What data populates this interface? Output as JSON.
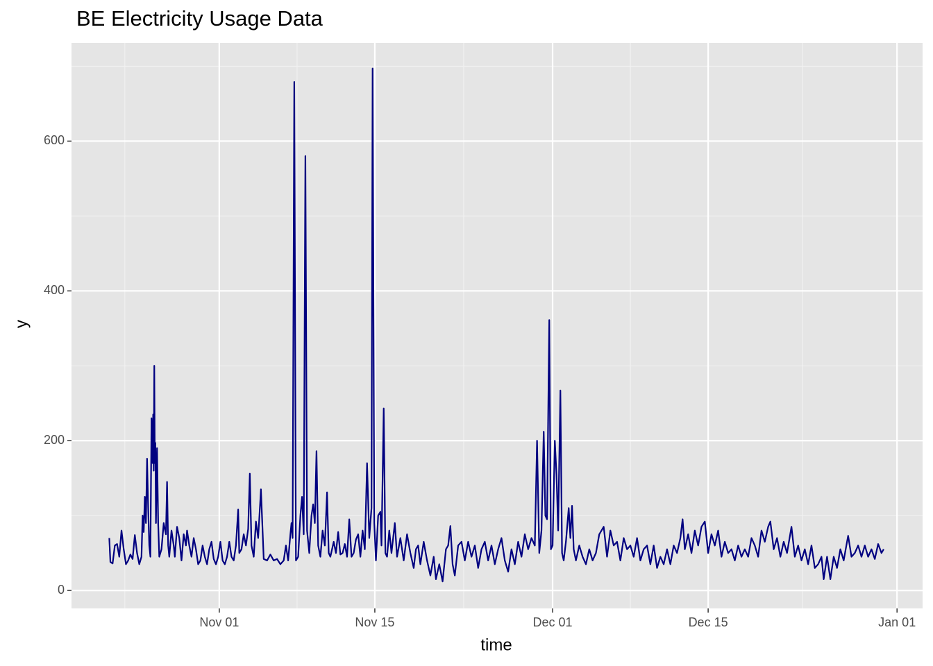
{
  "chart_data": {
    "type": "line",
    "title": "BE Electricity Usage Data",
    "x_label": "time",
    "y_label": "y",
    "color": "#000080",
    "grid": true,
    "background": "#e5e5e5",
    "xlim": [
      -13.3,
      63.3
    ],
    "ylim": [
      -24,
      731
    ],
    "xticks": [
      {
        "value": 0,
        "label": "Nov 01"
      },
      {
        "value": 14,
        "label": "Nov 15"
      },
      {
        "value": 30,
        "label": "Dec 01"
      },
      {
        "value": 44,
        "label": "Dec 15"
      },
      {
        "value": 61,
        "label": "Jan 01"
      }
    ],
    "xminor": [
      -8.5,
      7,
      22,
      37,
      52.5
    ],
    "yticks": [
      0,
      200,
      400,
      600
    ],
    "yminor": [
      100,
      300,
      500,
      700
    ],
    "x": [
      -9.9,
      -9.8,
      -9.6,
      -9.4,
      -9.2,
      -9.0,
      -8.8,
      -8.6,
      -8.4,
      -8.2,
      -8.0,
      -7.8,
      -7.6,
      -7.4,
      -7.2,
      -7.0,
      -6.9,
      -6.8,
      -6.7,
      -6.6,
      -6.5,
      -6.4,
      -6.3,
      -6.2,
      -6.1,
      -6.0,
      -5.95,
      -5.9,
      -5.85,
      -5.8,
      -5.75,
      -5.7,
      -5.6,
      -5.5,
      -5.4,
      -5.2,
      -5.0,
      -4.9,
      -4.8,
      -4.7,
      -4.6,
      -4.5,
      -4.3,
      -4.1,
      -4.0,
      -3.8,
      -3.6,
      -3.4,
      -3.2,
      -3.0,
      -2.9,
      -2.7,
      -2.5,
      -2.3,
      -2.1,
      -1.9,
      -1.7,
      -1.5,
      -1.3,
      -1.1,
      -0.9,
      -0.7,
      -0.5,
      -0.3,
      -0.1,
      0.1,
      0.3,
      0.5,
      0.7,
      0.9,
      1.1,
      1.3,
      1.5,
      1.7,
      1.8,
      2.0,
      2.2,
      2.4,
      2.6,
      2.75,
      2.9,
      3.1,
      3.3,
      3.5,
      3.75,
      4.0,
      4.3,
      4.6,
      4.9,
      5.2,
      5.5,
      5.8,
      6.0,
      6.2,
      6.4,
      6.5,
      6.6,
      6.75,
      6.9,
      7.1,
      7.3,
      7.45,
      7.6,
      7.75,
      7.9,
      8.1,
      8.3,
      8.45,
      8.6,
      8.75,
      8.9,
      9.1,
      9.3,
      9.5,
      9.7,
      9.85,
      10.0,
      10.3,
      10.5,
      10.7,
      10.9,
      11.1,
      11.3,
      11.5,
      11.7,
      11.9,
      12.1,
      12.3,
      12.5,
      12.7,
      12.9,
      13.1,
      13.3,
      13.5,
      13.7,
      13.8,
      13.95,
      14.1,
      14.3,
      14.5,
      14.6,
      14.8,
      14.95,
      15.1,
      15.3,
      15.5,
      15.8,
      16.0,
      16.3,
      16.6,
      16.9,
      17.2,
      17.5,
      17.7,
      17.9,
      18.1,
      18.4,
      18.7,
      19.0,
      19.3,
      19.5,
      19.8,
      20.1,
      20.4,
      20.6,
      20.8,
      21.0,
      21.2,
      21.5,
      21.8,
      22.1,
      22.4,
      22.7,
      23.0,
      23.3,
      23.6,
      23.9,
      24.2,
      24.5,
      24.8,
      25.1,
      25.4,
      25.7,
      26.0,
      26.3,
      26.6,
      26.9,
      27.2,
      27.5,
      27.8,
      28.1,
      28.4,
      28.6,
      28.8,
      29.0,
      29.2,
      29.35,
      29.5,
      29.7,
      29.85,
      30.0,
      30.2,
      30.35,
      30.5,
      30.7,
      30.85,
      31.0,
      31.2,
      31.45,
      31.6,
      31.75,
      31.9,
      32.1,
      32.4,
      32.7,
      33.0,
      33.3,
      33.6,
      33.9,
      34.2,
      34.6,
      34.9,
      35.2,
      35.5,
      35.8,
      36.1,
      36.4,
      36.7,
      37.0,
      37.3,
      37.6,
      37.9,
      38.2,
      38.5,
      38.8,
      39.1,
      39.4,
      39.7,
      40.0,
      40.3,
      40.6,
      40.9,
      41.2,
      41.5,
      41.7,
      41.9,
      42.2,
      42.5,
      42.8,
      43.1,
      43.4,
      43.7,
      44.0,
      44.3,
      44.6,
      44.9,
      45.2,
      45.5,
      45.8,
      46.1,
      46.4,
      46.7,
      47.0,
      47.3,
      47.6,
      47.9,
      48.2,
      48.5,
      48.8,
      49.1,
      49.4,
      49.6,
      49.9,
      50.2,
      50.5,
      50.8,
      51.1,
      51.5,
      51.8,
      52.1,
      52.4,
      52.7,
      53.0,
      53.3,
      53.6,
      53.9,
      54.2,
      54.4,
      54.7,
      55.0,
      55.3,
      55.6,
      55.9,
      56.2,
      56.5,
      56.6,
      56.9,
      57.2,
      57.5,
      57.8,
      58.1,
      58.4,
      58.7,
      59.0,
      59.3,
      59.6,
      59.8
    ],
    "values": [
      70,
      38,
      36,
      60,
      62,
      45,
      80,
      55,
      35,
      40,
      48,
      42,
      74,
      50,
      35,
      45,
      100,
      78,
      125,
      90,
      176,
      110,
      60,
      45,
      230,
      170,
      235,
      160,
      300,
      170,
      197,
      90,
      190,
      90,
      45,
      55,
      90,
      82,
      75,
      145,
      60,
      45,
      80,
      60,
      45,
      85,
      70,
      40,
      75,
      60,
      80,
      60,
      45,
      70,
      55,
      35,
      40,
      60,
      45,
      35,
      55,
      65,
      42,
      35,
      45,
      65,
      40,
      35,
      45,
      65,
      45,
      40,
      60,
      108,
      50,
      55,
      75,
      60,
      82,
      156,
      60,
      45,
      92,
      70,
      135,
      42,
      40,
      48,
      40,
      42,
      35,
      40,
      60,
      40,
      75,
      90,
      70,
      679,
      40,
      45,
      100,
      125,
      75,
      580,
      80,
      50,
      100,
      115,
      90,
      186,
      60,
      45,
      80,
      60,
      131,
      50,
      45,
      65,
      50,
      78,
      48,
      50,
      62,
      45,
      95,
      45,
      50,
      68,
      75,
      45,
      80,
      55,
      170,
      70,
      110,
      697,
      90,
      40,
      100,
      105,
      60,
      243,
      50,
      45,
      80,
      50,
      90,
      45,
      70,
      40,
      75,
      50,
      30,
      55,
      60,
      35,
      65,
      40,
      20,
      45,
      15,
      35,
      12,
      55,
      60,
      86,
      35,
      20,
      60,
      65,
      40,
      65,
      45,
      60,
      30,
      55,
      65,
      40,
      60,
      35,
      55,
      70,
      40,
      25,
      55,
      35,
      65,
      45,
      75,
      55,
      70,
      60,
      200,
      50,
      80,
      212,
      100,
      95,
      361,
      55,
      60,
      200,
      155,
      80,
      267,
      50,
      40,
      65,
      110,
      70,
      113,
      55,
      40,
      60,
      45,
      35,
      55,
      40,
      50,
      75,
      85,
      45,
      80,
      60,
      65,
      40,
      70,
      55,
      60,
      45,
      70,
      40,
      55,
      60,
      35,
      60,
      30,
      45,
      35,
      55,
      35,
      60,
      50,
      70,
      95,
      55,
      75,
      50,
      80,
      60,
      85,
      92,
      50,
      75,
      60,
      80,
      45,
      65,
      50,
      55,
      40,
      60,
      45,
      55,
      45,
      70,
      60,
      45,
      80,
      65,
      85,
      92,
      55,
      70,
      45,
      65,
      50,
      85,
      45,
      60,
      40,
      55,
      35,
      60,
      30,
      35,
      45,
      15,
      45,
      15,
      45,
      30,
      55,
      40,
      65,
      73,
      45,
      50,
      60,
      45,
      60,
      45,
      55,
      42,
      62,
      50,
      55
    ]
  }
}
